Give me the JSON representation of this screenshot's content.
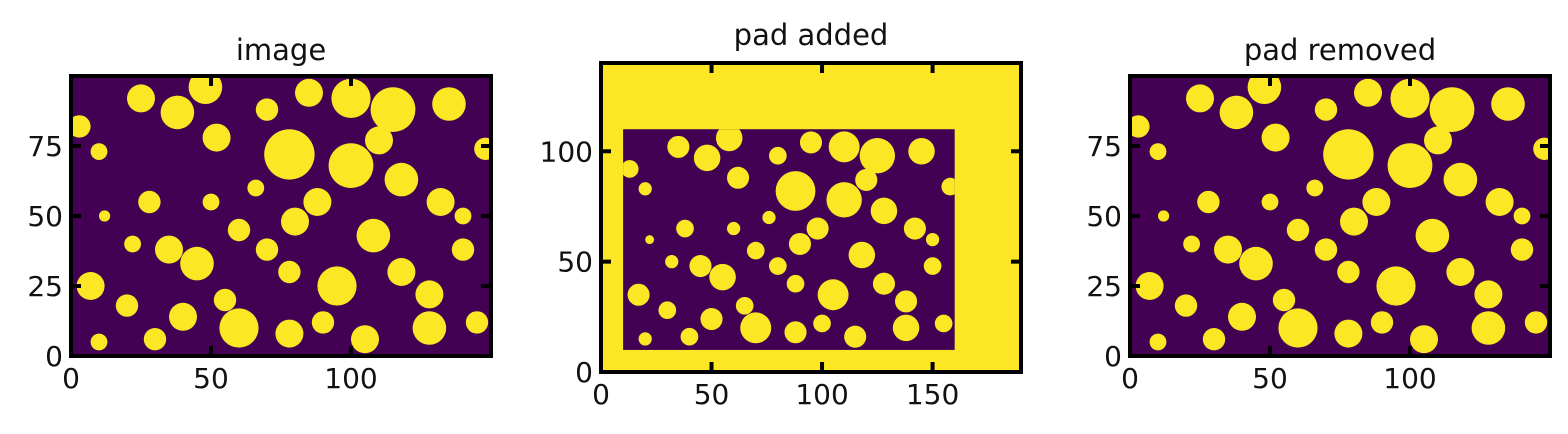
{
  "chart_data": [
    {
      "type": "heatmap",
      "title": "image",
      "xlim": [
        0,
        150
      ],
      "ylim": [
        0,
        100
      ],
      "xticks": [
        "0",
        "50",
        "100"
      ],
      "yticks": [
        "0",
        "25",
        "50",
        "75"
      ],
      "colormap": {
        "low": "#440154",
        "high": "#fde725"
      },
      "grid": false,
      "blobs": [
        {
          "x": 3,
          "y": 82,
          "r": 4
        },
        {
          "x": 10,
          "y": 73,
          "r": 3
        },
        {
          "x": 25,
          "y": 92,
          "r": 5
        },
        {
          "x": 38,
          "y": 87,
          "r": 6
        },
        {
          "x": 52,
          "y": 78,
          "r": 5
        },
        {
          "x": 48,
          "y": 96,
          "r": 6
        },
        {
          "x": 70,
          "y": 88,
          "r": 4
        },
        {
          "x": 85,
          "y": 94,
          "r": 5
        },
        {
          "x": 100,
          "y": 92,
          "r": 7
        },
        {
          "x": 115,
          "y": 88,
          "r": 8
        },
        {
          "x": 135,
          "y": 90,
          "r": 6
        },
        {
          "x": 148,
          "y": 74,
          "r": 4
        },
        {
          "x": 78,
          "y": 72,
          "r": 9
        },
        {
          "x": 100,
          "y": 68,
          "r": 8
        },
        {
          "x": 118,
          "y": 63,
          "r": 6
        },
        {
          "x": 132,
          "y": 55,
          "r": 5
        },
        {
          "x": 88,
          "y": 55,
          "r": 5
        },
        {
          "x": 80,
          "y": 48,
          "r": 5
        },
        {
          "x": 28,
          "y": 55,
          "r": 4
        },
        {
          "x": 50,
          "y": 55,
          "r": 3
        },
        {
          "x": 22,
          "y": 40,
          "r": 3
        },
        {
          "x": 35,
          "y": 38,
          "r": 5
        },
        {
          "x": 45,
          "y": 33,
          "r": 6
        },
        {
          "x": 60,
          "y": 45,
          "r": 4
        },
        {
          "x": 70,
          "y": 38,
          "r": 4
        },
        {
          "x": 78,
          "y": 30,
          "r": 4
        },
        {
          "x": 108,
          "y": 43,
          "r": 6
        },
        {
          "x": 140,
          "y": 38,
          "r": 4
        },
        {
          "x": 7,
          "y": 25,
          "r": 5
        },
        {
          "x": 20,
          "y": 18,
          "r": 4
        },
        {
          "x": 55,
          "y": 20,
          "r": 4
        },
        {
          "x": 95,
          "y": 25,
          "r": 7
        },
        {
          "x": 118,
          "y": 30,
          "r": 5
        },
        {
          "x": 128,
          "y": 22,
          "r": 5
        },
        {
          "x": 145,
          "y": 12,
          "r": 4
        },
        {
          "x": 40,
          "y": 14,
          "r": 5
        },
        {
          "x": 60,
          "y": 10,
          "r": 7
        },
        {
          "x": 78,
          "y": 8,
          "r": 5
        },
        {
          "x": 105,
          "y": 6,
          "r": 5
        },
        {
          "x": 128,
          "y": 10,
          "r": 6
        },
        {
          "x": 30,
          "y": 6,
          "r": 4
        },
        {
          "x": 10,
          "y": 5,
          "r": 3
        },
        {
          "x": 90,
          "y": 12,
          "r": 4
        },
        {
          "x": 140,
          "y": 50,
          "r": 3
        },
        {
          "x": 66,
          "y": 60,
          "r": 3
        },
        {
          "x": 12,
          "y": 50,
          "r": 2
        },
        {
          "x": 110,
          "y": 77,
          "r": 5
        }
      ]
    },
    {
      "type": "heatmap",
      "title": "pad added",
      "xlim": [
        0,
        190
      ],
      "ylim": [
        0,
        140
      ],
      "xticks": [
        "0",
        "50",
        "100",
        "150"
      ],
      "yticks": [
        "0",
        "50",
        "100"
      ],
      "inner_region": {
        "x": [
          10,
          160
        ],
        "y": [
          10,
          110
        ]
      },
      "colormap": {
        "low": "#440154",
        "high": "#fde725"
      },
      "grid": false
    },
    {
      "type": "heatmap",
      "title": "pad removed",
      "xlim": [
        0,
        150
      ],
      "ylim": [
        0,
        100
      ],
      "xticks": [
        "0",
        "50",
        "100"
      ],
      "yticks": [
        "0",
        "25",
        "50",
        "75"
      ],
      "colormap": {
        "low": "#440154",
        "high": "#fde725"
      },
      "grid": false
    }
  ]
}
